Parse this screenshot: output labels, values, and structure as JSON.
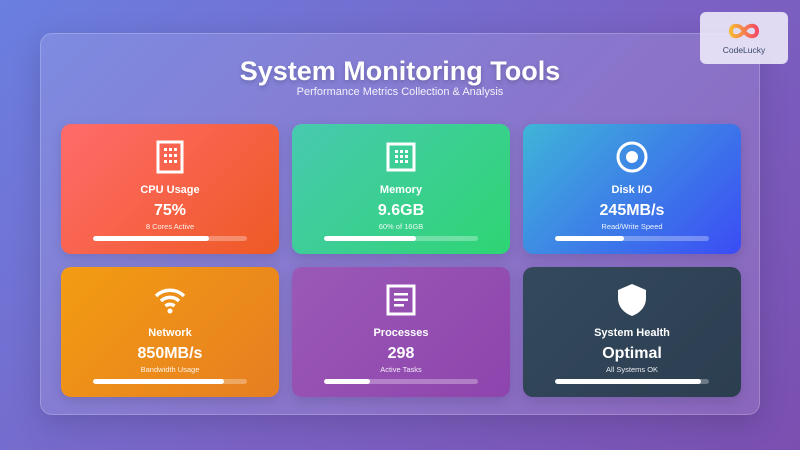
{
  "header": {
    "title": "System Monitoring Tools",
    "subtitle": "Performance Metrics Collection & Analysis"
  },
  "logo": {
    "text": "CodeLucky"
  },
  "cards": [
    {
      "label": "CPU Usage",
      "value": "75%",
      "sub": "8 Cores Active",
      "progress": 75,
      "icon": "cpu-icon",
      "colors": [
        "#ff6b6b",
        "#ee5a24"
      ]
    },
    {
      "label": "Memory",
      "value": "9.6GB",
      "sub": "60% of 16GB",
      "progress": 60,
      "icon": "memory-icon",
      "colors": [
        "#48c9b0",
        "#2ed573"
      ]
    },
    {
      "label": "Disk I/O",
      "value": "245MB/s",
      "sub": "Read/Write Speed",
      "progress": 45,
      "icon": "disk-icon",
      "colors": [
        "#3fb5d8",
        "#3b4cf5"
      ]
    },
    {
      "label": "Network",
      "value": "850MB/s",
      "sub": "Bandwidth Usage",
      "progress": 85,
      "icon": "wifi-icon",
      "colors": [
        "#f39c12",
        "#e67e22"
      ]
    },
    {
      "label": "Processes",
      "value": "298",
      "sub": "Active Tasks",
      "progress": 30,
      "icon": "document-icon",
      "colors": [
        "#9b59b6",
        "#8e44ad"
      ]
    },
    {
      "label": "System Health",
      "value": "Optimal",
      "sub": "All Systems OK",
      "progress": 95,
      "icon": "shield-icon",
      "colors": [
        "#34495e",
        "#2c3e50"
      ]
    }
  ]
}
